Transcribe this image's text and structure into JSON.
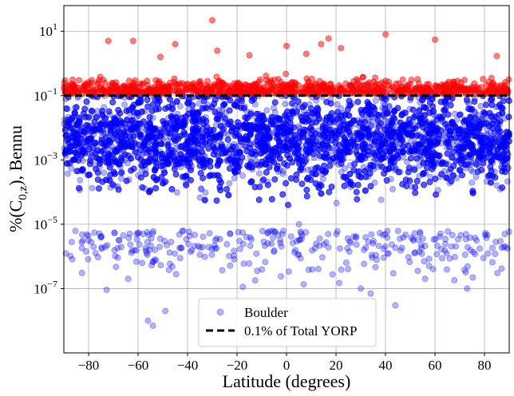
{
  "chart_data": {
    "type": "scatter",
    "title": "",
    "xlabel": "Latitude (degrees)",
    "ylabel_prefix": "%(C",
    "ylabel_sub": "0,z",
    "ylabel_suffix": "), Bennu",
    "xlim": [
      -90,
      90
    ],
    "ylim_log10": [
      -9,
      1.8
    ],
    "yscale": "log",
    "grid": true,
    "legend_position": "bottom-center",
    "x_ticks": [
      -80,
      -60,
      -40,
      -20,
      0,
      20,
      40,
      60,
      80
    ],
    "x_tick_labels": [
      "−80",
      "−60",
      "−40",
      "−20",
      "0",
      "20",
      "40",
      "60",
      "80"
    ],
    "y_ticks": [
      {
        "base": "10",
        "exp": "1",
        "value": 10
      },
      {
        "base": "10",
        "exp": "−1",
        "value": 0.1
      },
      {
        "base": "10",
        "exp": "−3",
        "value": 0.001
      },
      {
        "base": "10",
        "exp": "−5",
        "value": 1e-05
      },
      {
        "base": "10",
        "exp": "−7",
        "value": 1e-07
      }
    ],
    "threshold": {
      "value": 0.1,
      "label": "0.1% of Total YORP",
      "color": "#000000",
      "style": "dashed"
    },
    "series": [
      {
        "name": "Boulder",
        "marker": "circle",
        "color_below_threshold": "#0000ff",
        "color_above_threshold": "#ff0000",
        "alpha": 0.3
      }
    ],
    "outliers": [
      {
        "lat": -30,
        "value": 22.0
      },
      {
        "lat": -28,
        "value": 2.5
      },
      {
        "lat": -51,
        "value": 1.6
      },
      {
        "lat": -15,
        "value": 1.8
      },
      {
        "lat": 0,
        "value": 3.5
      },
      {
        "lat": 8,
        "value": 2.0
      },
      {
        "lat": 17,
        "value": 6.0
      },
      {
        "lat": 14,
        "value": 4.0
      },
      {
        "lat": 85,
        "value": 1.7
      },
      {
        "lat": -72,
        "value": 5.0
      },
      {
        "lat": -62,
        "value": 5.0
      },
      {
        "lat": 40,
        "value": 8.0
      },
      {
        "lat": 60,
        "value": 5.5
      },
      {
        "lat": -45,
        "value": 4.0
      },
      {
        "lat": 22,
        "value": 3.0
      },
      {
        "lat": -56,
        "value": 1e-08
      },
      {
        "lat": -54,
        "value": 7e-09
      },
      {
        "lat": -49,
        "value": 2e-08
      },
      {
        "lat": 30,
        "value": 1e-07
      },
      {
        "lat": 34,
        "value": 7e-08
      },
      {
        "lat": 44,
        "value": 3e-08
      },
      {
        "lat": -64,
        "value": 2e-07
      },
      {
        "lat": 73,
        "value": 1e-07
      },
      {
        "lat": -19,
        "value": 3e-06
      },
      {
        "lat": 5,
        "value": 1e-05
      },
      {
        "lat": 56,
        "value": 2e-07
      }
    ]
  }
}
